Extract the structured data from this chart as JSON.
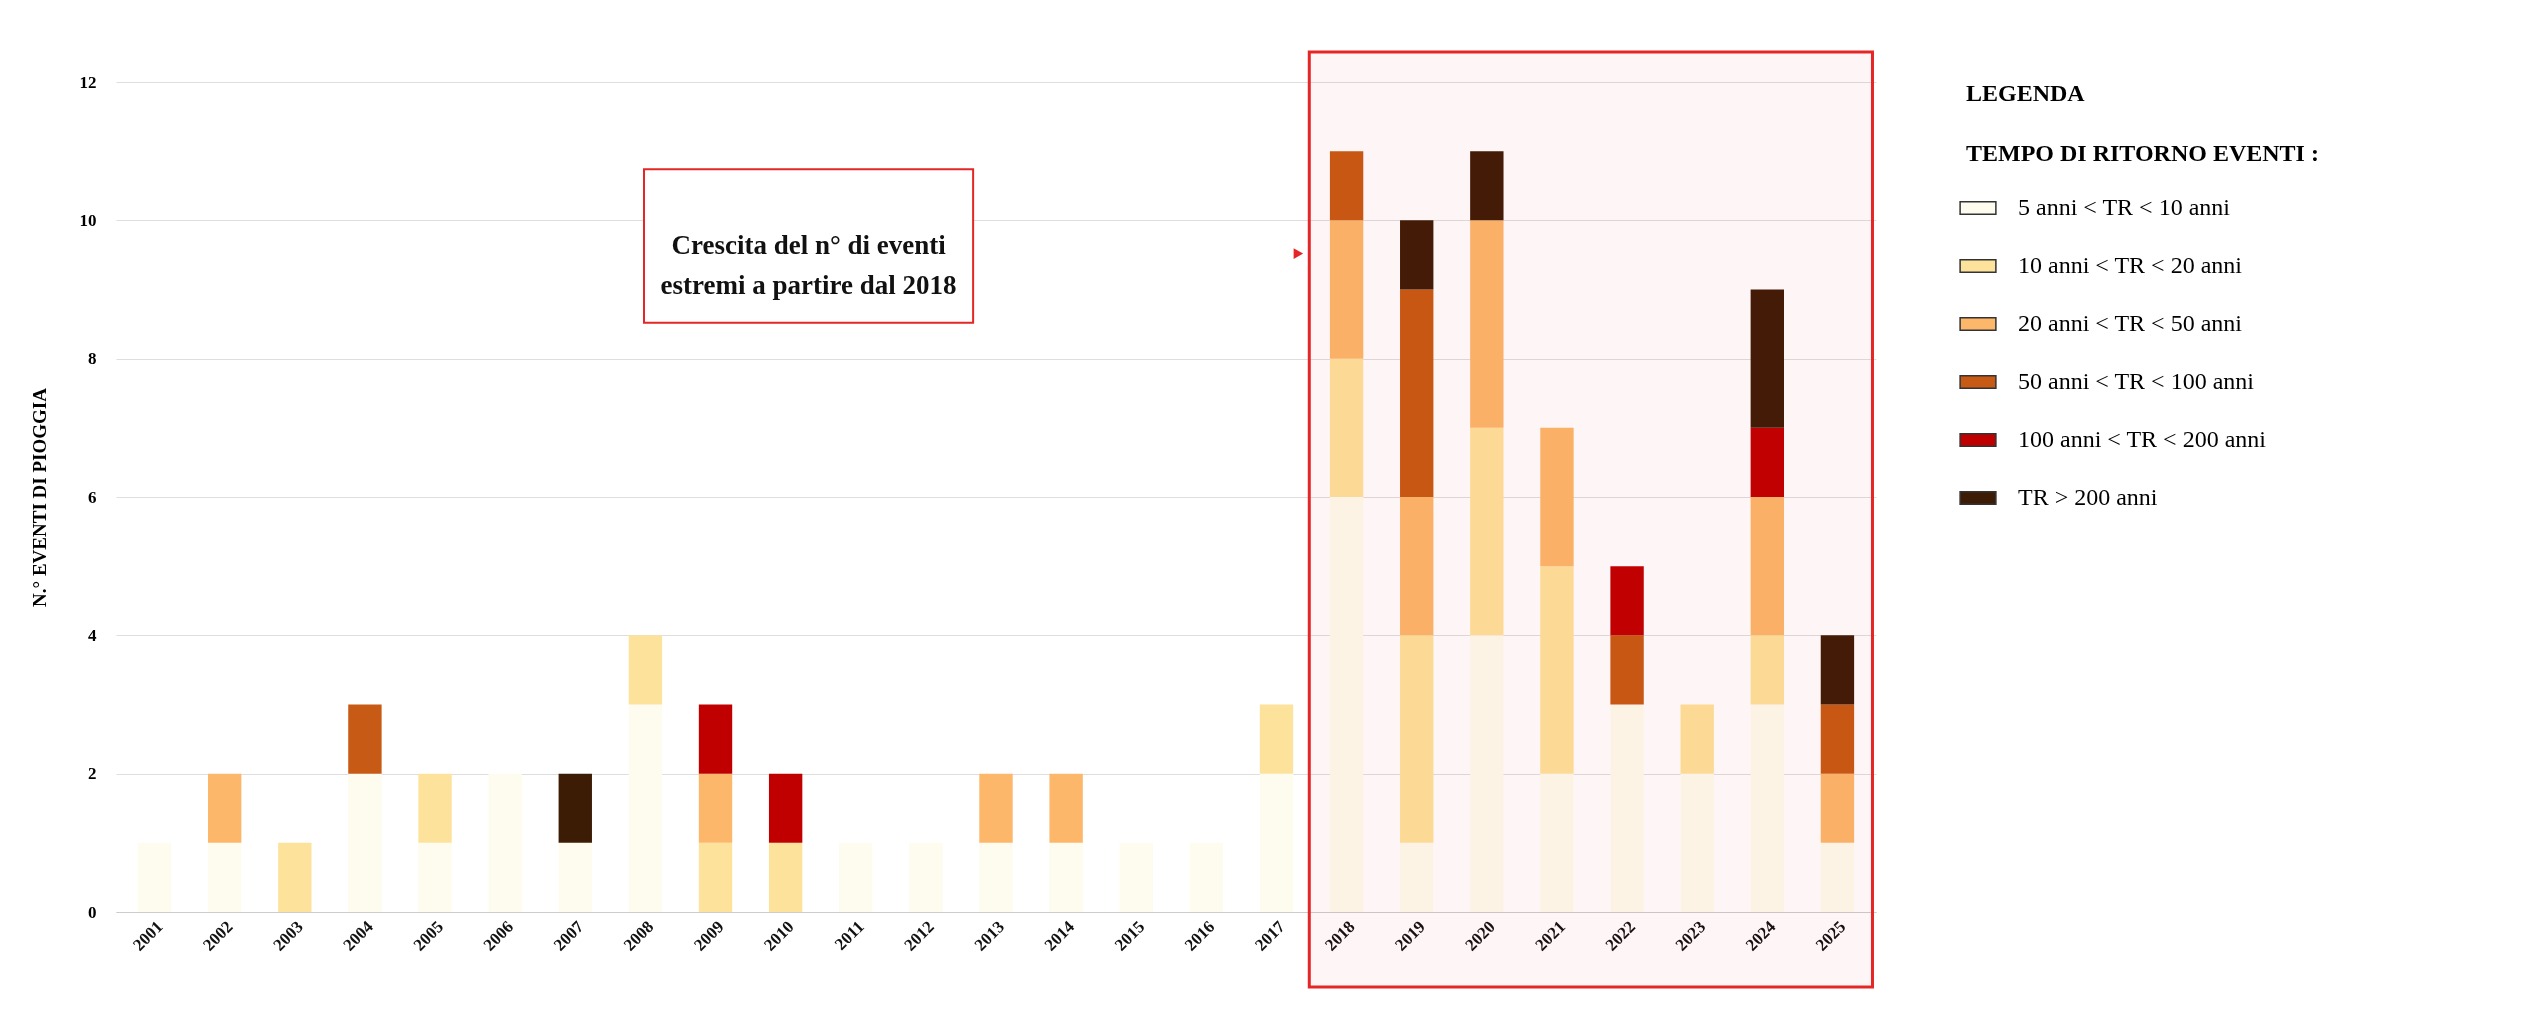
{
  "chart_data": {
    "type": "bar",
    "stacked": true,
    "ylabel": "N.° EVENTI DI PIOGGIA",
    "legend_title": "LEGENDA\nTEMPO DI RITORNO EVENTI :",
    "categories": [
      "2001",
      "2002",
      "2003",
      "2004",
      "2005",
      "2006",
      "2007",
      "2008",
      "2009",
      "2010",
      "2011",
      "2012",
      "2013",
      "2014",
      "2015",
      "2016",
      "2017",
      "2018",
      "2019",
      "2020",
      "2021",
      "2022",
      "2023",
      "2024",
      "2025"
    ],
    "series": [
      {
        "name": "5 anni < TR < 10 anni",
        "color": "#fefcee",
        "values": [
          1,
          1,
          0,
          2,
          1,
          2,
          1,
          3,
          0,
          0,
          1,
          1,
          1,
          1,
          1,
          1,
          2,
          6,
          1,
          4,
          2,
          3,
          2,
          3,
          1
        ]
      },
      {
        "name": "10 anni < TR < 20 anni",
        "color": "#fde29b",
        "values": [
          0,
          0,
          1,
          0,
          1,
          0,
          0,
          1,
          1,
          1,
          0,
          0,
          0,
          0,
          0,
          0,
          1,
          2,
          3,
          3,
          3,
          0,
          1,
          1,
          0
        ]
      },
      {
        "name": "20 anni < TR < 50 anni",
        "color": "#fcb76b",
        "values": [
          0,
          1,
          0,
          0,
          0,
          0,
          0,
          0,
          1,
          0,
          0,
          0,
          1,
          1,
          0,
          0,
          0,
          2,
          2,
          3,
          2,
          0,
          0,
          2,
          1
        ]
      },
      {
        "name": "50 anni < TR < 100 anni",
        "color": "#c75a14",
        "values": [
          0,
          0,
          0,
          1,
          0,
          0,
          0,
          0,
          0,
          0,
          0,
          0,
          0,
          0,
          0,
          0,
          0,
          1,
          3,
          0,
          0,
          1,
          0,
          0,
          1
        ]
      },
      {
        "name": "100 anni < TR < 200 anni",
        "color": "#c00000",
        "values": [
          0,
          0,
          0,
          0,
          0,
          0,
          0,
          0,
          1,
          1,
          0,
          0,
          0,
          0,
          0,
          0,
          0,
          0,
          0,
          0,
          0,
          1,
          0,
          1,
          0
        ]
      },
      {
        "name": "TR > 200 anni",
        "color": "#3d1c06",
        "values": [
          0,
          0,
          0,
          0,
          0,
          0,
          1,
          0,
          0,
          0,
          0,
          0,
          0,
          0,
          0,
          0,
          0,
          0,
          1,
          1,
          0,
          0,
          0,
          2,
          1
        ]
      }
    ],
    "ylim": [
      0,
      12
    ],
    "yticks": [
      0,
      2,
      4,
      6,
      8,
      10,
      12
    ],
    "grid": "y",
    "legend": "right",
    "bands": [
      {
        "axis": "x",
        "from": "2018",
        "to": "2025",
        "color": "#e52626"
      }
    ],
    "annotations": [
      "Crescita del n° di eventi\nestremi a partire dal 2018"
    ]
  }
}
